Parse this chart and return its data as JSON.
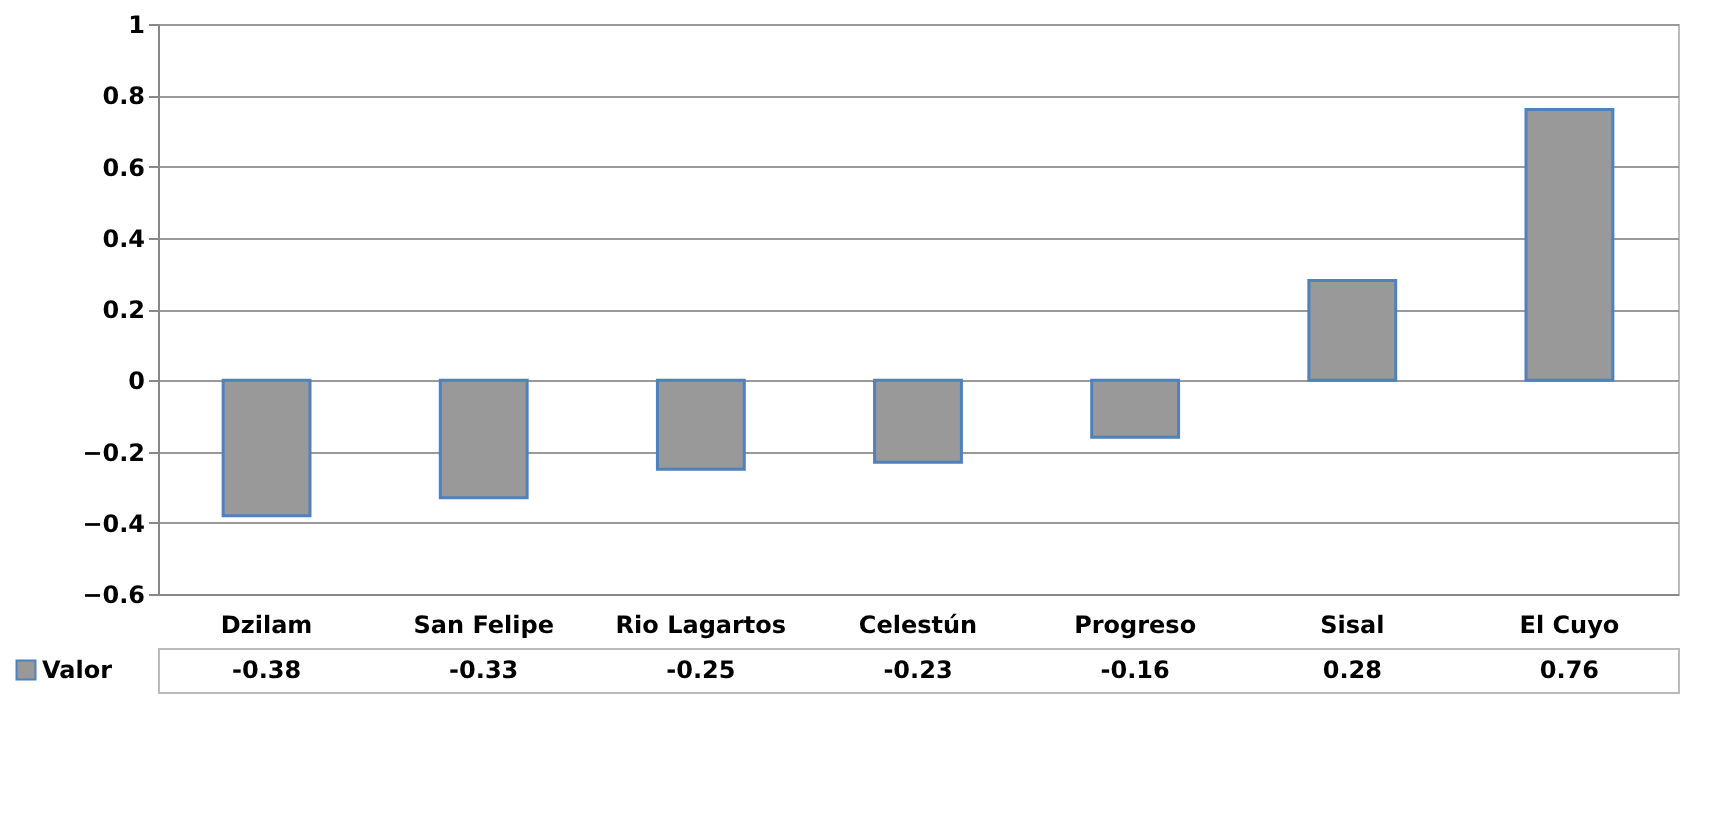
{
  "chart_data": {
    "type": "bar",
    "categories": [
      "Dzilam",
      "San Felipe",
      "Rio Lagartos",
      "Celestún",
      "Progreso",
      "Sisal",
      "El Cuyo"
    ],
    "series": [
      {
        "name": "Valor",
        "color": "#999999",
        "values": [
          -0.38,
          -0.33,
          -0.25,
          -0.23,
          -0.16,
          0.28,
          0.76
        ]
      }
    ],
    "ylim": [
      -0.6,
      1
    ],
    "yticks": [
      -0.6,
      -0.4,
      -0.2,
      0,
      0.2,
      0.4,
      0.6,
      0.8,
      1
    ],
    "grid": "y",
    "legend": "bottom",
    "data_labels": true
  }
}
